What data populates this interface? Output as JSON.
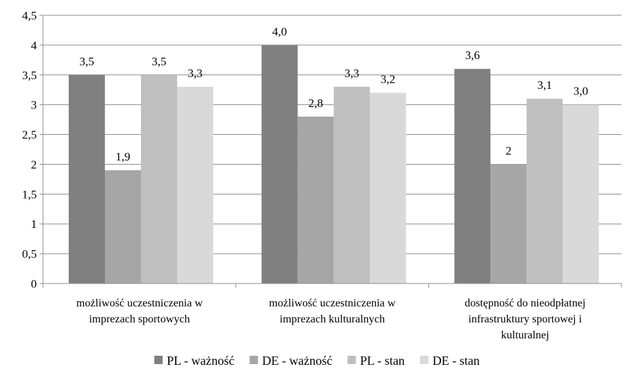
{
  "chart_data": {
    "type": "bar",
    "title": "",
    "xlabel": "",
    "ylabel": "",
    "ylim": [
      0,
      4.5
    ],
    "yticks": [
      "0",
      "0,5",
      "1",
      "1,5",
      "2",
      "2,5",
      "3",
      "3,5",
      "4",
      "4,5"
    ],
    "grid": true,
    "legend_position": "bottom",
    "categories": [
      [
        "możliwość uczestniczenia  w",
        "imprezach sportowych"
      ],
      [
        "możliwość uczestniczenia  w",
        "imprezach kulturalnych"
      ],
      [
        "dostępność do nieodpłatnej",
        "infrastruktury sportowej i",
        "kulturalnej"
      ]
    ],
    "series": [
      {
        "name": "PL - ważność",
        "color": "#808080",
        "values": [
          3.5,
          4.0,
          3.6
        ],
        "labels": [
          "3,5",
          "4,0",
          "3,6"
        ]
      },
      {
        "name": "DE - ważność",
        "color": "#a6a6a6",
        "values": [
          1.9,
          2.8,
          2.0
        ],
        "labels": [
          "1,9",
          "2,8",
          "2"
        ]
      },
      {
        "name": "PL - stan",
        "color": "#bfbfbf",
        "values": [
          3.5,
          3.3,
          3.1
        ],
        "labels": [
          "3,5",
          "3,3",
          "3,1"
        ]
      },
      {
        "name": "DE - stan",
        "color": "#d9d9d9",
        "values": [
          3.3,
          3.2,
          3.0
        ],
        "labels": [
          "3,3",
          "3,2",
          "3,0"
        ]
      }
    ]
  }
}
